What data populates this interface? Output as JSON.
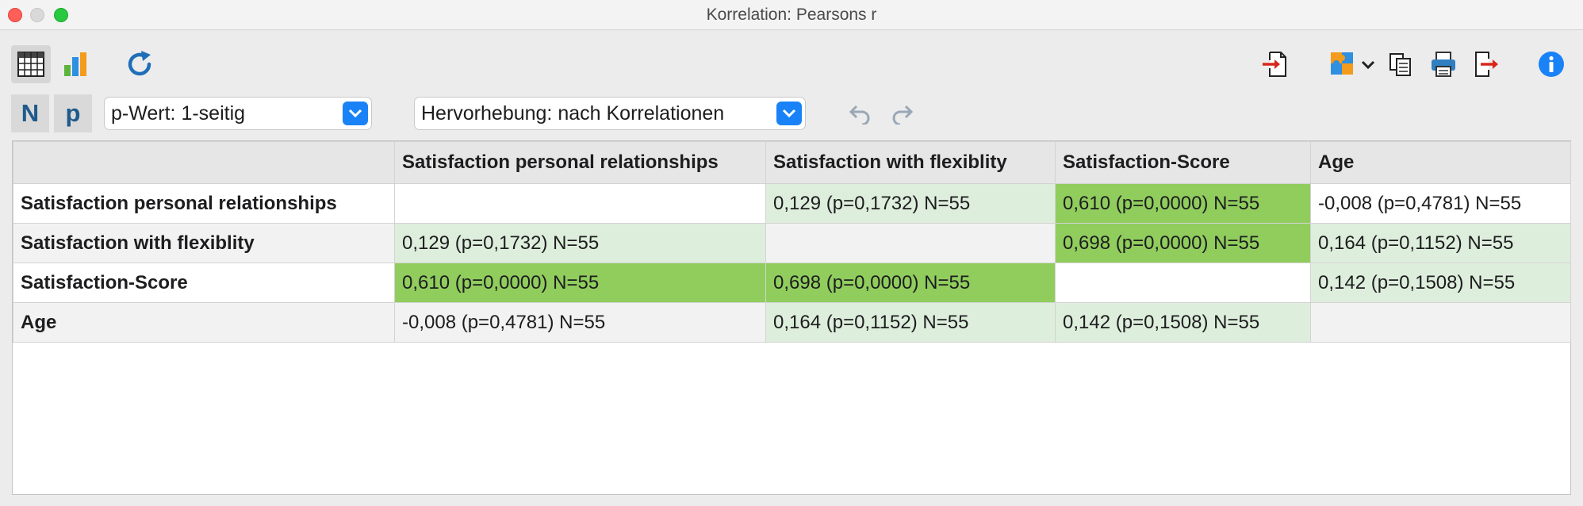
{
  "window": {
    "title": "Korrelation: Pearsons r"
  },
  "toolbar": {
    "icons": [
      "table-view-icon",
      "chart-view-icon",
      "refresh-icon",
      "import-icon",
      "puzzle-export-icon",
      "copy-icon",
      "print-icon",
      "export-icon",
      "info-icon"
    ],
    "n_label": "N",
    "p_label": "p"
  },
  "pvalue_select": {
    "value": "p-Wert: 1-seitig"
  },
  "highlight_select": {
    "value": "Hervorhebung: nach Korrelationen"
  },
  "colors": {
    "strong": "#90cd5d",
    "light": "#deeedc",
    "accent": "#1a82f7"
  },
  "table": {
    "columns": [
      "",
      "Satisfaction personal relationships",
      "Satisfaction with flexiblity",
      "Satisfaction-Score",
      "Age"
    ],
    "rows": [
      {
        "label": "Satisfaction personal relationships",
        "cells": [
          "",
          "0,129 (p=0,1732) N=55",
          "0,610 (p=0,0000) N=55",
          "-0,008 (p=0,4781) N=55"
        ]
      },
      {
        "label": "Satisfaction with flexiblity",
        "cells": [
          "0,129 (p=0,1732) N=55",
          "",
          "0,698 (p=0,0000) N=55",
          "0,164 (p=0,1152) N=55"
        ]
      },
      {
        "label": "Satisfaction-Score",
        "cells": [
          "0,610 (p=0,0000) N=55",
          "0,698 (p=0,0000) N=55",
          "",
          "0,142 (p=0,1508) N=55"
        ]
      },
      {
        "label": "Age",
        "cells": [
          "-0,008 (p=0,4781) N=55",
          "0,164 (p=0,1152) N=55",
          "0,142 (p=0,1508) N=55",
          ""
        ]
      }
    ]
  }
}
